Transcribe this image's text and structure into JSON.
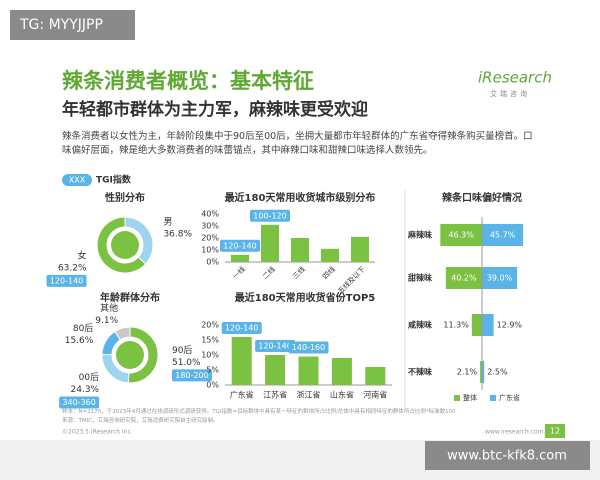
{
  "watermark_top": "TG: MYYJJPP",
  "watermark_bottom": "www.btc-kfk8.com",
  "header": {
    "title": "辣条消费者概览：基本特征",
    "subtitle": "年轻都市群体为主力军，麻辣味更受欢迎",
    "logo": "iResearch",
    "logo_sub": "艾瑞咨询"
  },
  "summary": "辣条消费者以女性为主，年龄阶段集中于90后至00后，坐拥大量都市年轻群体的广东省夺得辣条购买量榜首。口味偏好层面，辣是绝大多数消费者的味蕾锚点，其中麻辣口味和甜辣口味选择人数领先。",
  "legend": {
    "sample": "XXX",
    "label": "TGI指数"
  },
  "chart_data": [
    {
      "type": "donut",
      "title": "性别分布",
      "categories": [
        "男",
        "女"
      ],
      "values": [
        36.8,
        63.2
      ],
      "value_labels": [
        "36.8%",
        "63.2%"
      ],
      "colors": [
        "#9fd3ee",
        "#7cc242"
      ],
      "tgi_labels": [
        null,
        "120-140"
      ]
    },
    {
      "type": "bar",
      "title": "最近180天常用收货城市级别分布",
      "categories": [
        "一线",
        "二线",
        "三线",
        "四线",
        "五线及以下"
      ],
      "values": [
        6,
        31,
        20,
        11,
        21
      ],
      "color": "#7cc242",
      "ylim": [
        0,
        40
      ],
      "yticks": [
        {
          "value": 0,
          "label": "0%"
        },
        {
          "value": 10,
          "label": "10%"
        },
        {
          "value": 20,
          "label": "20%"
        },
        {
          "value": 30,
          "label": "30%"
        },
        {
          "value": 40,
          "label": "40%"
        }
      ],
      "tgi_labels": [
        "120-140",
        "100-120",
        null,
        null,
        null
      ]
    },
    {
      "type": "butterfly",
      "title": "辣条口味偏好情况",
      "categories": [
        "麻辣味",
        "甜辣味",
        "咸辣味",
        "不辣味"
      ],
      "series": [
        {
          "name": "整体",
          "color": "#7cc242",
          "values": [
            46.3,
            40.2,
            11.3,
            2.1
          ],
          "value_labels": [
            "46.3%",
            "40.2%",
            "11.3%",
            "2.1%"
          ]
        },
        {
          "name": "广东省",
          "color": "#5ab4e8",
          "values": [
            45.7,
            39.0,
            12.9,
            2.5
          ],
          "value_labels": [
            "45.7%",
            "39.0%",
            "12.9%",
            "2.5%"
          ]
        }
      ]
    },
    {
      "type": "donut",
      "title": "年龄群体分布",
      "categories": [
        "90后",
        "00后",
        "80后",
        "其他"
      ],
      "values": [
        51.0,
        24.3,
        15.6,
        9.1
      ],
      "value_labels": [
        "51.0%",
        "24.3%",
        "15.6%",
        "9.1%"
      ],
      "colors": [
        "#7cc242",
        "#9fd3ee",
        "#5ab4e8",
        "#c8c8c8"
      ],
      "tgi_labels": [
        "180-200",
        "340-360",
        null,
        null
      ]
    },
    {
      "type": "bar",
      "title": "最近180天常用收货省份TOP5",
      "categories": [
        "广东省",
        "江苏省",
        "浙江省",
        "山东省",
        "河南省"
      ],
      "values": [
        16,
        10,
        9.5,
        9,
        6
      ],
      "color": "#7cc242",
      "ylim": [
        0,
        20
      ],
      "yticks": [
        {
          "value": 0,
          "label": "0%"
        },
        {
          "value": 5,
          "label": "5%"
        },
        {
          "value": 10,
          "label": "10%"
        },
        {
          "value": 15,
          "label": "15%"
        },
        {
          "value": 20,
          "label": "20%"
        }
      ],
      "tgi_labels": [
        "120-140",
        "120-140",
        "140-160",
        null,
        null
      ]
    }
  ],
  "footer": {
    "note": "样本：N=2175，于2023年4月通过在线调研形式调研获得。TGI指数=目标群体中具有某一特征的群体所占比例/总体中具有相同特征的群体所占比例*标准数100",
    "source": "来源：TMIC，艾瑞咨询研究院，艾瑞消费研究院自主研究绘制。",
    "copyright": "©2023.5 iResearch Inc.",
    "url": "www.iresearch.com.cn",
    "page": "12"
  }
}
